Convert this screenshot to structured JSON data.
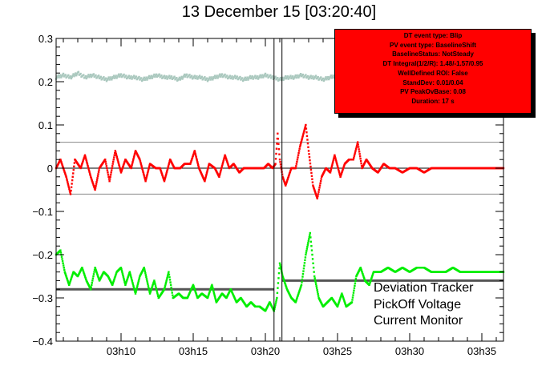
{
  "chart_data": {
    "type": "scatter",
    "title": "13 December 15 [03:20:40]",
    "xlabel": "",
    "ylabel": "",
    "x_tick_labels": [
      "03h10",
      "03h15",
      "03h20",
      "03h25",
      "03h30",
      "03h35"
    ],
    "x_ticks_minutes": [
      10,
      15,
      20,
      25,
      30,
      35
    ],
    "xlim_minutes": [
      5.5,
      36.5
    ],
    "y_ticks": [
      -0.4,
      -0.3,
      -0.2,
      -0.1,
      0,
      0.1,
      0.2,
      0.3
    ],
    "y_tick_labels": [
      "−0.4",
      "−0.3",
      "−0.2",
      "−0.1",
      "0",
      "0.1",
      "0.2",
      "0.3"
    ],
    "ylim": [
      -0.4,
      0.3
    ],
    "grid": false,
    "info_box": [
      "DT event type: Blip",
      "PV event type: BaselineShift",
      "BaselineStatus: NotSteady",
      "DT Integral(1/2/R): 1.48/-1.57/0.95",
      "WellDefined ROI: False",
      "StandDev: 0.01/0.04",
      "PV PeakOvBase: 0.08",
      "Duration: 17 s"
    ],
    "legend": {
      "position": "bottom-right",
      "entries": [
        "Deviation Tracker",
        "PickOff Voltage",
        "Current Monitor"
      ]
    },
    "event_lines_minutes": [
      20.6,
      21.15
    ],
    "reference_lines": {
      "dt_thresholds": [
        0.06,
        -0.06
      ],
      "pv_baseline_before": -0.28,
      "pv_baseline_after": -0.26
    },
    "series": [
      {
        "name": "Deviation Tracker",
        "color": "#ff0000",
        "x": [
          5.5,
          5.8,
          6.2,
          6.5,
          6.8,
          7.2,
          7.5,
          7.9,
          8.2,
          8.5,
          8.9,
          9.2,
          9.6,
          10.0,
          10.3,
          10.7,
          11.0,
          11.3,
          11.7,
          12.0,
          12.4,
          12.7,
          13.0,
          13.4,
          13.7,
          14.1,
          14.4,
          14.8,
          15.1,
          15.4,
          15.8,
          16.1,
          16.5,
          16.8,
          17.2,
          17.5,
          17.8,
          18.2,
          18.5,
          18.8,
          19.2,
          19.5,
          19.9,
          20.2,
          20.5,
          20.7,
          20.85,
          21.0,
          21.2,
          21.4,
          21.6,
          21.8,
          22.1,
          22.4,
          22.8,
          23.0,
          23.3,
          23.6,
          23.9,
          24.2,
          24.5,
          24.8,
          25.2,
          25.5,
          25.8,
          26.1,
          26.4,
          26.7,
          27.0,
          27.4,
          27.8,
          28.2,
          28.6,
          29.0,
          29.5,
          30.0,
          30.5,
          31.0,
          31.5,
          32.0,
          32.5,
          33.0,
          33.5,
          34.0,
          34.5,
          35.0,
          35.5,
          36.0,
          36.5
        ],
        "y": [
          0.0,
          0.02,
          -0.02,
          -0.06,
          0.02,
          0.0,
          0.03,
          -0.02,
          -0.05,
          0.0,
          0.02,
          -0.03,
          0.04,
          -0.01,
          0.02,
          0.0,
          0.04,
          0.02,
          -0.03,
          0.01,
          0.0,
          0.0,
          -0.03,
          0.02,
          0.0,
          0.0,
          0.01,
          0.01,
          0.04,
          0.0,
          -0.03,
          0.01,
          0.0,
          -0.02,
          0.03,
          0.0,
          0.01,
          -0.01,
          0.0,
          0.0,
          0.0,
          0.0,
          0.0,
          0.01,
          0.0,
          0.01,
          0.08,
          0.02,
          -0.02,
          -0.04,
          -0.02,
          0.0,
          0.0,
          0.05,
          0.1,
          0.04,
          -0.04,
          -0.07,
          -0.02,
          0.0,
          -0.01,
          0.03,
          -0.02,
          0.01,
          0.02,
          0.02,
          0.06,
          0.0,
          0.02,
          0.0,
          -0.01,
          0.01,
          0.0,
          0.0,
          -0.01,
          0.0,
          0.0,
          -0.01,
          0.0,
          0.0,
          0.0,
          0.0,
          0.0,
          0.0,
          0.0,
          0.0,
          0.0,
          0.0,
          0.0
        ]
      },
      {
        "name": "PickOff Voltage",
        "color": "#00ee00",
        "x": [
          5.5,
          5.8,
          6.1,
          6.4,
          6.7,
          7.0,
          7.3,
          7.6,
          7.9,
          8.2,
          8.5,
          8.8,
          9.1,
          9.4,
          9.7,
          10.0,
          10.3,
          10.6,
          11.0,
          11.3,
          11.6,
          12.0,
          12.3,
          12.6,
          13.0,
          13.3,
          13.6,
          14.0,
          14.3,
          14.6,
          15.0,
          15.3,
          15.6,
          16.0,
          16.3,
          16.6,
          17.0,
          17.3,
          17.6,
          18.0,
          18.3,
          18.7,
          19.0,
          19.3,
          19.6,
          20.0,
          20.3,
          20.6,
          20.8,
          21.0,
          21.2,
          21.5,
          21.8,
          22.1,
          22.5,
          22.8,
          23.1,
          23.4,
          23.7,
          24.0,
          24.3,
          24.6,
          25.0,
          25.3,
          25.6,
          26.0,
          26.3,
          26.6,
          26.9,
          27.2,
          27.5,
          28.0,
          28.5,
          29.0,
          29.5,
          30.0,
          30.5,
          31.0,
          31.5,
          32.0,
          32.5,
          33.0,
          33.5,
          34.0,
          34.5,
          35.0,
          35.5,
          36.0,
          36.5
        ],
        "y": [
          -0.2,
          -0.19,
          -0.24,
          -0.27,
          -0.24,
          -0.25,
          -0.23,
          -0.26,
          -0.28,
          -0.23,
          -0.26,
          -0.24,
          -0.25,
          -0.27,
          -0.24,
          -0.23,
          -0.27,
          -0.24,
          -0.29,
          -0.25,
          -0.23,
          -0.29,
          -0.26,
          -0.3,
          -0.28,
          -0.24,
          -0.3,
          -0.29,
          -0.3,
          -0.3,
          -0.27,
          -0.3,
          -0.29,
          -0.3,
          -0.27,
          -0.31,
          -0.29,
          -0.3,
          -0.28,
          -0.31,
          -0.3,
          -0.32,
          -0.31,
          -0.32,
          -0.32,
          -0.33,
          -0.31,
          -0.33,
          -0.3,
          -0.22,
          -0.25,
          -0.28,
          -0.3,
          -0.31,
          -0.27,
          -0.2,
          -0.15,
          -0.25,
          -0.3,
          -0.32,
          -0.31,
          -0.3,
          -0.32,
          -0.29,
          -0.32,
          -0.31,
          -0.25,
          -0.23,
          -0.26,
          -0.27,
          -0.24,
          -0.24,
          -0.23,
          -0.24,
          -0.23,
          -0.24,
          -0.23,
          -0.23,
          -0.24,
          -0.24,
          -0.24,
          -0.23,
          -0.24,
          -0.24,
          -0.24,
          -0.24,
          -0.24,
          -0.24,
          -0.24
        ]
      },
      {
        "name": "Current Monitor",
        "color": "#aac8be",
        "x": [
          5.5,
          6.0,
          6.5,
          7.0,
          7.5,
          8.0,
          8.5,
          9.0,
          9.5,
          10.0,
          10.5,
          11.0,
          11.5,
          12.0,
          12.5,
          13.0,
          13.5,
          14.0,
          14.5,
          15.0,
          15.5,
          16.0,
          16.5,
          17.0,
          17.5,
          18.0,
          18.5,
          19.0,
          19.5,
          20.0,
          20.5,
          21.0,
          21.5,
          22.0,
          22.5,
          23.0,
          23.5,
          24.0,
          24.5,
          25.0,
          25.5,
          26.0,
          26.5,
          27.0
        ],
        "y": [
          0.21,
          0.215,
          0.21,
          0.22,
          0.21,
          0.215,
          0.21,
          0.205,
          0.21,
          0.215,
          0.21,
          0.21,
          0.205,
          0.21,
          0.215,
          0.21,
          0.21,
          0.205,
          0.215,
          0.21,
          0.21,
          0.205,
          0.21,
          0.215,
          0.21,
          0.21,
          0.205,
          0.21,
          0.21,
          0.215,
          0.21,
          0.205,
          0.21,
          0.21,
          0.215,
          0.21,
          0.21,
          0.205,
          0.21,
          0.215,
          0.21,
          0.21,
          0.215,
          0.21
        ]
      }
    ]
  }
}
